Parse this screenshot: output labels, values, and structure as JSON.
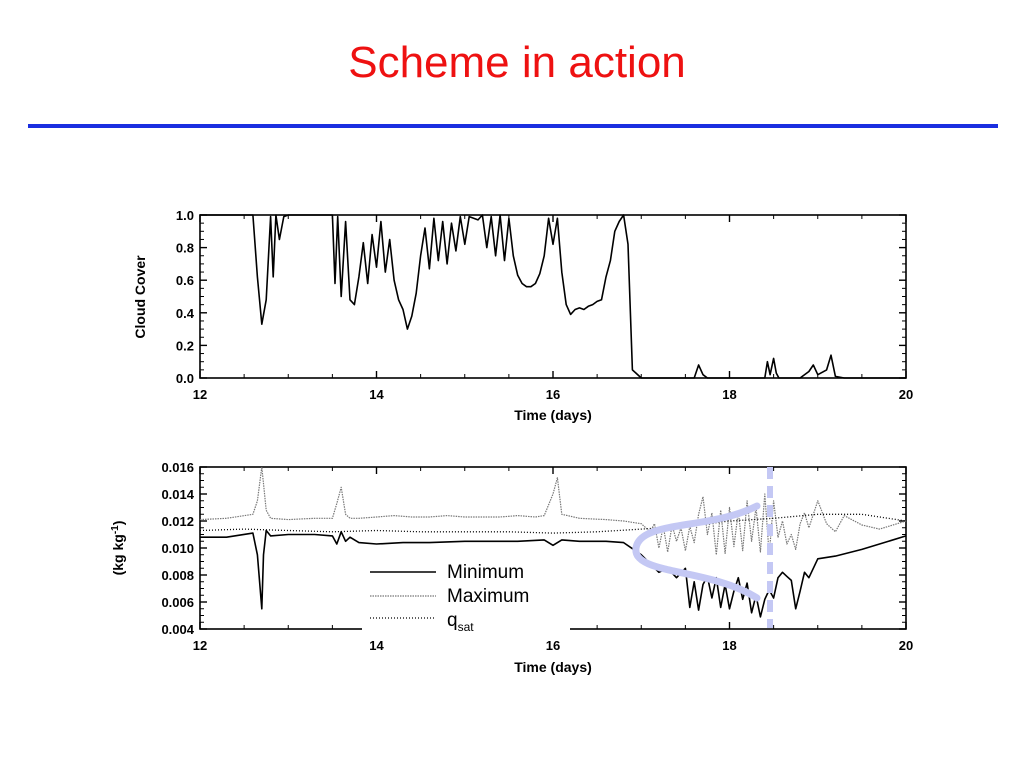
{
  "slide": {
    "title": "Scheme in action"
  },
  "colors": {
    "title": "#ee1111",
    "rule": "#1a2ee0",
    "highlight": "#c4c8f4",
    "max_series": "#777777"
  },
  "chart_data": [
    {
      "type": "line",
      "xlabel": "Time (days)",
      "ylabel": "Cloud Cover",
      "xlim": [
        12,
        20
      ],
      "ylim": [
        0,
        1.0
      ],
      "xticks": [
        "12",
        "14",
        "16",
        "18",
        "20"
      ],
      "yticks": [
        "0.0",
        "0.2",
        "0.4",
        "0.6",
        "0.8",
        "1.0"
      ],
      "series": [
        {
          "x": [
            12.0,
            12.6,
            12.65,
            12.7,
            12.75,
            12.8,
            12.83,
            12.86,
            12.9,
            12.95,
            13.0,
            13.5,
            13.53,
            13.56,
            13.6,
            13.65,
            13.7,
            13.75,
            13.8,
            13.85,
            13.9,
            13.95,
            14.0,
            14.05,
            14.1,
            14.15,
            14.2,
            14.25,
            14.3,
            14.35,
            14.4,
            14.45,
            14.5,
            14.55,
            14.6,
            14.65,
            14.7,
            14.75,
            14.8,
            14.85,
            14.9,
            14.95,
            15.0,
            15.05,
            15.1,
            15.15,
            15.2,
            15.25,
            15.3,
            15.35,
            15.4,
            15.45,
            15.5,
            15.55,
            15.6,
            15.65,
            15.7,
            15.75,
            15.8,
            15.85,
            15.9,
            15.95,
            16.0,
            16.05,
            16.1,
            16.15,
            16.2,
            16.25,
            16.3,
            16.35,
            16.4,
            16.45,
            16.5,
            16.55,
            16.6,
            16.65,
            16.7,
            16.75,
            16.8,
            16.85,
            16.9,
            17.0,
            17.6,
            17.65,
            17.7,
            17.75,
            18.0,
            18.4,
            18.43,
            18.46,
            18.5,
            18.53,
            18.56,
            18.6,
            18.8,
            18.9,
            18.95,
            19.0,
            19.1,
            19.15,
            19.2,
            19.3,
            20.0
          ],
          "y": [
            1.0,
            1.0,
            0.62,
            0.33,
            0.48,
            0.99,
            0.62,
            1.0,
            0.85,
            0.99,
            1.0,
            1.0,
            0.58,
            0.99,
            0.5,
            0.96,
            0.48,
            0.45,
            0.62,
            0.83,
            0.58,
            0.88,
            0.68,
            0.96,
            0.65,
            0.85,
            0.6,
            0.48,
            0.42,
            0.3,
            0.38,
            0.52,
            0.75,
            0.92,
            0.67,
            0.98,
            0.72,
            0.96,
            0.7,
            0.95,
            0.78,
            0.99,
            0.82,
            0.99,
            0.98,
            0.97,
            1.0,
            0.8,
            0.99,
            0.75,
            1.0,
            0.72,
            0.98,
            0.75,
            0.63,
            0.58,
            0.56,
            0.56,
            0.58,
            0.64,
            0.75,
            0.98,
            0.82,
            0.98,
            0.65,
            0.45,
            0.39,
            0.42,
            0.43,
            0.42,
            0.44,
            0.45,
            0.47,
            0.48,
            0.62,
            0.72,
            0.9,
            0.96,
            1.0,
            0.82,
            0.05,
            0.0,
            0.0,
            0.08,
            0.02,
            0.0,
            0.0,
            0.0,
            0.1,
            0.02,
            0.12,
            0.03,
            0.0,
            0.0,
            0.0,
            0.04,
            0.08,
            0.02,
            0.05,
            0.14,
            0.01,
            0.0,
            0.0
          ]
        }
      ]
    },
    {
      "type": "line",
      "xlabel": "Time (days)",
      "ylabel": "(kg kg-1)",
      "xlim": [
        12,
        20
      ],
      "ylim": [
        0.004,
        0.016
      ],
      "xticks": [
        "12",
        "14",
        "16",
        "18",
        "20"
      ],
      "yticks": [
        "0.004",
        "0.006",
        "0.008",
        "0.010",
        "0.012",
        "0.014",
        "0.016"
      ],
      "legend_placement": "lower-center",
      "series": [
        {
          "name": "Minimum",
          "x": [
            12.0,
            12.3,
            12.6,
            12.65,
            12.7,
            12.72,
            12.75,
            12.8,
            13.0,
            13.3,
            13.5,
            13.55,
            13.6,
            13.65,
            13.7,
            13.8,
            14.0,
            14.3,
            14.6,
            15.0,
            15.3,
            15.6,
            15.9,
            16.0,
            16.1,
            16.3,
            16.6,
            16.8,
            17.0,
            17.2,
            17.3,
            17.4,
            17.5,
            17.55,
            17.6,
            17.65,
            17.7,
            17.75,
            17.8,
            17.85,
            17.9,
            17.95,
            18.0,
            18.05,
            18.1,
            18.15,
            18.2,
            18.25,
            18.3,
            18.35,
            18.4,
            18.45,
            18.5,
            18.55,
            18.6,
            18.65,
            18.7,
            18.75,
            18.8,
            18.85,
            18.9,
            19.0,
            19.2,
            19.5,
            20.0
          ],
          "y": [
            0.0108,
            0.0108,
            0.0111,
            0.0095,
            0.0055,
            0.0095,
            0.0113,
            0.0109,
            0.011,
            0.011,
            0.0109,
            0.0103,
            0.0112,
            0.0105,
            0.0108,
            0.0104,
            0.0103,
            0.0104,
            0.0104,
            0.0105,
            0.0105,
            0.0105,
            0.0106,
            0.0102,
            0.0106,
            0.0105,
            0.0105,
            0.0104,
            0.0095,
            0.0082,
            0.0085,
            0.0078,
            0.0085,
            0.0056,
            0.0075,
            0.0054,
            0.0073,
            0.0079,
            0.0063,
            0.0078,
            0.0056,
            0.0073,
            0.0055,
            0.0068,
            0.0078,
            0.0062,
            0.0074,
            0.0052,
            0.0065,
            0.0049,
            0.0062,
            0.0069,
            0.0063,
            0.0078,
            0.0082,
            0.0079,
            0.0076,
            0.0055,
            0.0068,
            0.0082,
            0.0078,
            0.0092,
            0.0094,
            0.0099,
            0.0109
          ]
        },
        {
          "name": "Maximum",
          "x": [
            12.0,
            12.3,
            12.6,
            12.65,
            12.7,
            12.75,
            12.8,
            13.0,
            13.3,
            13.5,
            13.55,
            13.6,
            13.65,
            13.7,
            13.8,
            14.0,
            14.2,
            14.4,
            14.6,
            14.8,
            15.0,
            15.2,
            15.4,
            15.6,
            15.8,
            15.9,
            16.0,
            16.05,
            16.1,
            16.3,
            16.6,
            16.8,
            17.0,
            17.1,
            17.15,
            17.2,
            17.25,
            17.3,
            17.35,
            17.4,
            17.45,
            17.5,
            17.55,
            17.6,
            17.65,
            17.7,
            17.75,
            17.8,
            17.85,
            17.9,
            17.95,
            18.0,
            18.05,
            18.1,
            18.15,
            18.2,
            18.25,
            18.3,
            18.35,
            18.4,
            18.45,
            18.5,
            18.55,
            18.6,
            18.65,
            18.7,
            18.75,
            18.8,
            18.85,
            18.9,
            19.0,
            19.1,
            19.2,
            19.3,
            19.5,
            19.7,
            20.0
          ],
          "y": [
            0.0121,
            0.0122,
            0.0125,
            0.0135,
            0.016,
            0.0128,
            0.0122,
            0.0121,
            0.0122,
            0.0122,
            0.0133,
            0.0145,
            0.0125,
            0.0122,
            0.0122,
            0.0123,
            0.0124,
            0.0123,
            0.0123,
            0.0124,
            0.0123,
            0.0123,
            0.0123,
            0.0124,
            0.0123,
            0.0124,
            0.014,
            0.0152,
            0.0125,
            0.0122,
            0.0121,
            0.012,
            0.0118,
            0.0112,
            0.0118,
            0.01,
            0.0116,
            0.0097,
            0.0117,
            0.0105,
            0.0115,
            0.0098,
            0.0116,
            0.0104,
            0.0125,
            0.0138,
            0.011,
            0.0126,
            0.0095,
            0.0128,
            0.0096,
            0.013,
            0.0101,
            0.0127,
            0.0098,
            0.0135,
            0.0105,
            0.013,
            0.0097,
            0.014,
            0.0095,
            0.0135,
            0.0108,
            0.012,
            0.0103,
            0.011,
            0.0099,
            0.0118,
            0.0126,
            0.0115,
            0.0135,
            0.0118,
            0.0112,
            0.0124,
            0.0117,
            0.0114,
            0.012
          ]
        },
        {
          "name": "qsat",
          "x": [
            12.0,
            12.5,
            13.0,
            13.5,
            14.0,
            14.5,
            15.0,
            15.5,
            16.0,
            16.5,
            17.0,
            17.5,
            18.0,
            18.5,
            19.0,
            19.5,
            20.0
          ],
          "y": [
            0.0113,
            0.0114,
            0.0113,
            0.0112,
            0.0113,
            0.0112,
            0.0112,
            0.0112,
            0.0111,
            0.0112,
            0.0114,
            0.0116,
            0.012,
            0.0122,
            0.0125,
            0.0125,
            0.012
          ]
        }
      ],
      "legend": [
        {
          "label": "Minimum",
          "sub": ""
        },
        {
          "label": "Maximum",
          "sub": ""
        },
        {
          "label": "q",
          "sub": "sat"
        }
      ]
    }
  ]
}
